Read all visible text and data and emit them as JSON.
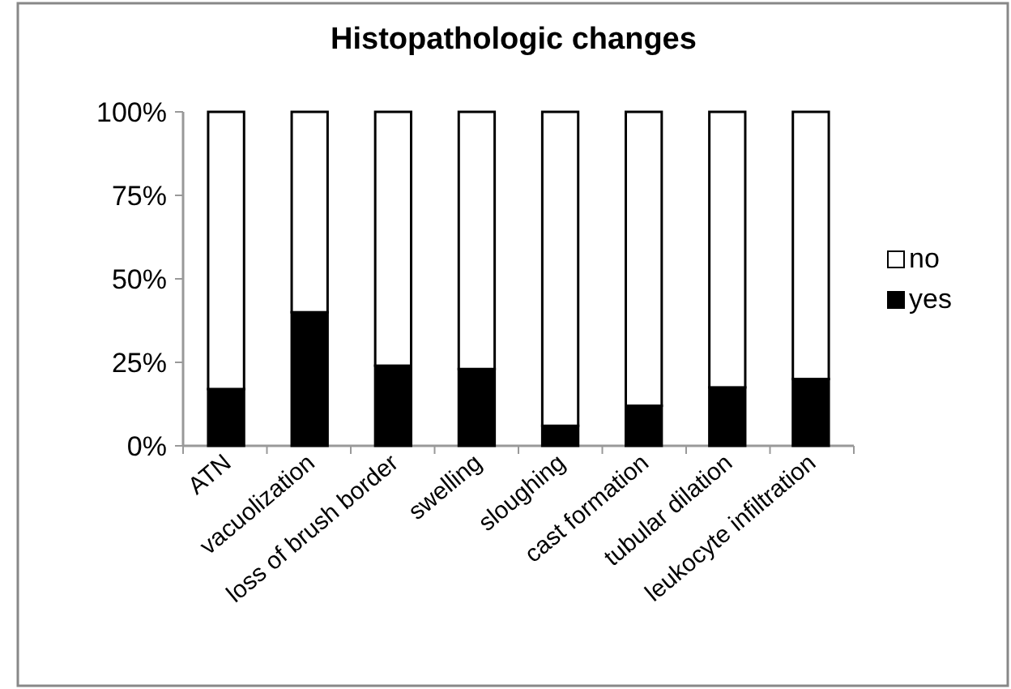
{
  "chart_data": {
    "type": "bar",
    "title": "Histopathologic changes",
    "categories": [
      "ATN",
      "vacuolization",
      "loss of brush border",
      "swelling",
      "sloughing",
      "cast formation",
      "tubular dilation",
      "leukocyte infiltration"
    ],
    "stacked": true,
    "series": [
      {
        "name": "yes",
        "color": "#000000",
        "values": [
          17,
          40,
          24,
          23,
          6,
          12,
          17.5,
          20
        ]
      },
      {
        "name": "no",
        "color": "#ffffff",
        "values": [
          83,
          60,
          76,
          77,
          94,
          88,
          82.5,
          80
        ]
      }
    ],
    "ylim": [
      0,
      100
    ],
    "yticks": [
      {
        "value": 0,
        "label": "0%"
      },
      {
        "value": 25,
        "label": "25%"
      },
      {
        "value": 50,
        "label": "50%"
      },
      {
        "value": 75,
        "label": "75%"
      },
      {
        "value": 100,
        "label": "100%"
      }
    ],
    "legend": "right",
    "grid": false
  }
}
